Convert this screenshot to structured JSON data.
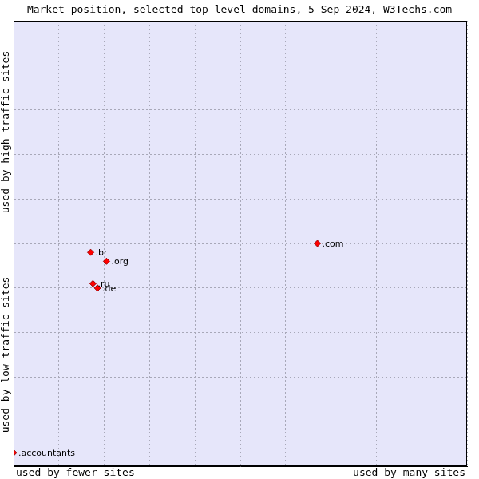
{
  "chart_data": {
    "type": "scatter",
    "title": "Market position, selected top level domains, 5 Sep 2024, W3Techs.com",
    "x_axis_labels": [
      "used by fewer sites",
      "used by many sites"
    ],
    "y_axis_labels": [
      "used by low traffic sites",
      "used by high traffic sites"
    ],
    "point_labels": [
      ".com",
      ".br",
      ".org",
      ".ru",
      ".de",
      ".accountants"
    ],
    "x": [
      6.7,
      1.7,
      2.05,
      1.75,
      1.85,
      0.0
    ],
    "values": [
      5.0,
      4.8,
      4.6,
      4.1,
      4.0,
      0.3
    ],
    "color": "#ff0000",
    "marker": "diamond",
    "xlim": [
      0,
      10
    ],
    "xticks": [
      0,
      1,
      2,
      3,
      4,
      5,
      6,
      7,
      8,
      9,
      10
    ],
    "ylim": [
      0,
      10
    ],
    "yticks": [
      0,
      1,
      2,
      3,
      4,
      5,
      6,
      7,
      8,
      9,
      10
    ],
    "grid": true,
    "tick_labels": false
  }
}
